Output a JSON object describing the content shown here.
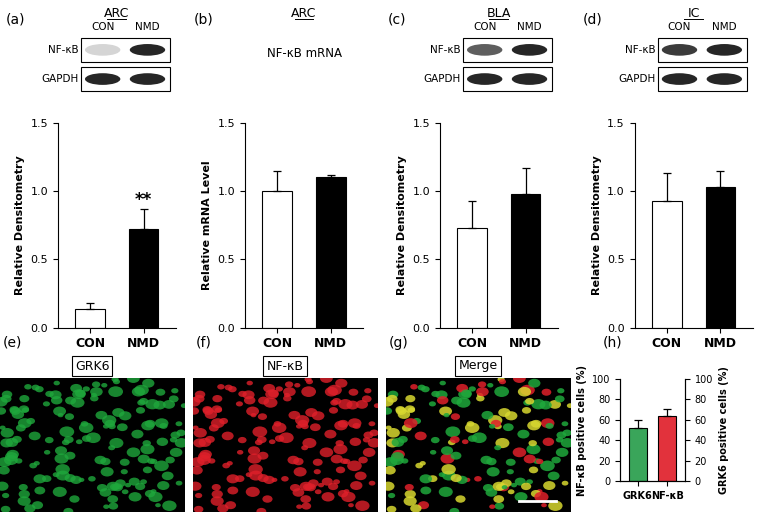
{
  "chart_data": [
    {
      "type": "bar",
      "label": "(a)",
      "title": "ARC",
      "categories": [
        "CON",
        "NMD"
      ],
      "values": [
        0.14,
        0.72
      ],
      "errors": [
        0.04,
        0.15
      ],
      "colors": [
        "#ffffff",
        "#000000"
      ],
      "ylabel": "Relative Densitometry",
      "ylim": [
        0,
        1.5
      ],
      "yticks": [
        {
          "value": 0,
          "label": "0.0"
        },
        {
          "value": 0.5,
          "label": "0.5"
        },
        {
          "value": 1.0,
          "label": "1.0"
        },
        {
          "value": 1.5,
          "label": "1.5"
        }
      ],
      "annotations": [
        {
          "text": "**",
          "category": "NMD"
        }
      ],
      "blot": {
        "lanes": [
          "CON",
          "NMD"
        ],
        "bands": [
          "NF-κB",
          "GAPDH"
        ]
      }
    },
    {
      "type": "bar",
      "label": "(b)",
      "title": "ARC",
      "subtitle": "NF-κB mRNA",
      "categories": [
        "CON",
        "NMD"
      ],
      "values": [
        1.0,
        1.1
      ],
      "errors": [
        0.15,
        0.02
      ],
      "colors": [
        "#ffffff",
        "#000000"
      ],
      "ylabel": "Relative mRNA Level",
      "ylim": [
        0,
        1.5
      ],
      "yticks": [
        {
          "value": 0,
          "label": "0.0"
        },
        {
          "value": 0.5,
          "label": "0.5"
        },
        {
          "value": 1.0,
          "label": "1.0"
        },
        {
          "value": 1.5,
          "label": "1.5"
        }
      ]
    },
    {
      "type": "bar",
      "label": "(c)",
      "title": "BLA",
      "categories": [
        "CON",
        "NMD"
      ],
      "values": [
        0.73,
        0.98
      ],
      "errors": [
        0.2,
        0.19
      ],
      "colors": [
        "#ffffff",
        "#000000"
      ],
      "ylabel": "Relative Densitometry",
      "ylim": [
        0,
        1.5
      ],
      "yticks": [
        {
          "value": 0,
          "label": "0.0"
        },
        {
          "value": 0.5,
          "label": "0.5"
        },
        {
          "value": 1.0,
          "label": "1.0"
        },
        {
          "value": 1.5,
          "label": "1.5"
        }
      ],
      "blot": {
        "lanes": [
          "CON",
          "NMD"
        ],
        "bands": [
          "NF-κB",
          "GAPDH"
        ]
      }
    },
    {
      "type": "bar",
      "label": "(d)",
      "title": "IC",
      "categories": [
        "CON",
        "NMD"
      ],
      "values": [
        0.93,
        1.03
      ],
      "errors": [
        0.2,
        0.12
      ],
      "colors": [
        "#ffffff",
        "#000000"
      ],
      "ylabel": "Relative Densitometry",
      "ylim": [
        0,
        1.5
      ],
      "yticks": [
        {
          "value": 0,
          "label": "0.0"
        },
        {
          "value": 0.5,
          "label": "0.5"
        },
        {
          "value": 1.0,
          "label": "1.0"
        },
        {
          "value": 1.5,
          "label": "1.5"
        }
      ],
      "blot": {
        "lanes": [
          "CON",
          "NMD"
        ],
        "bands": [
          "NF-κB",
          "GAPDH"
        ]
      }
    },
    {
      "type": "bar",
      "label": "(h)",
      "categories": [
        "GRK6",
        "NF-κB"
      ],
      "values": [
        52,
        64
      ],
      "errors": [
        8,
        7
      ],
      "colors": [
        "#3aa55a",
        "#e2323c"
      ],
      "ylabel": "NF-κB positive cells (%)",
      "y2label": "GRK6 positive cells (%)",
      "ylim": [
        0,
        100
      ],
      "yticks": [
        0,
        20,
        40,
        60,
        80,
        100
      ],
      "y2lim": [
        0,
        100
      ],
      "y2ticks": [
        0,
        20,
        40,
        60,
        80,
        100
      ]
    }
  ],
  "images": [
    {
      "label": "(e)",
      "title": "GRK6",
      "color": "#1fa83c"
    },
    {
      "label": "(f)",
      "title": "NF-κB",
      "color": "#e0202a"
    },
    {
      "label": "(g)",
      "title": "Merge"
    }
  ]
}
